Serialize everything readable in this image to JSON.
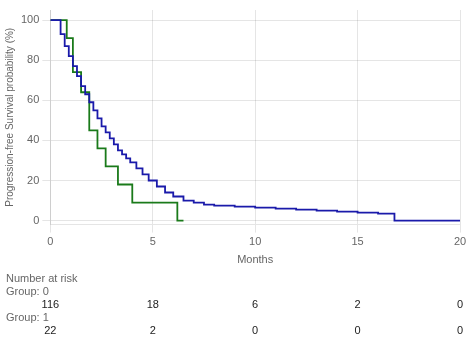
{
  "chart_data": {
    "type": "step",
    "xlabel": "Months",
    "ylabel": "Progression-free Survival probability (%)",
    "xlim": [
      0,
      20
    ],
    "ylim": [
      -2,
      105
    ],
    "xticks": [
      0,
      5,
      10,
      15,
      20
    ],
    "yticks": [
      0,
      20,
      40,
      60,
      80,
      100
    ],
    "grid": true,
    "series": [
      {
        "color": "#1a1aaa",
        "x": [
          0.0,
          0.3,
          0.5,
          0.7,
          0.9,
          1.1,
          1.3,
          1.5,
          1.7,
          1.9,
          2.1,
          2.3,
          2.5,
          2.7,
          2.9,
          3.1,
          3.3,
          3.5,
          3.7,
          3.9,
          4.2,
          4.5,
          4.8,
          5.2,
          5.6,
          6.0,
          6.5,
          7.0,
          7.5,
          8.0,
          9.0,
          10.0,
          11.0,
          12.0,
          13.0,
          14.0,
          15.0,
          16.0,
          16.8,
          20.0
        ],
        "values": [
          100,
          100,
          93,
          87,
          82,
          77,
          72,
          67,
          63,
          59,
          55,
          51,
          47,
          44,
          41,
          38,
          35,
          33,
          31,
          29,
          26,
          23,
          20,
          17,
          14,
          12,
          10,
          9,
          8,
          7.5,
          7,
          6.5,
          6,
          5.5,
          5,
          4.5,
          4,
          3.5,
          0,
          0
        ]
      },
      {
        "color": "#1a7a1a",
        "x": [
          0.0,
          0.5,
          0.8,
          1.1,
          1.5,
          1.9,
          2.3,
          2.7,
          3.0,
          3.3,
          3.7,
          4.0,
          4.5,
          5.0,
          5.5,
          6.2,
          6.5
        ],
        "values": [
          100,
          100,
          91,
          74,
          64,
          45,
          36,
          27,
          27,
          18,
          18,
          9,
          9,
          9,
          9,
          0,
          0
        ]
      }
    ],
    "risk_table": {
      "title": "Number at risk",
      "x": [
        0,
        5,
        10,
        15,
        20
      ],
      "rows": [
        {
          "name": "Group: 0",
          "values": [
            116,
            18,
            6,
            2,
            0
          ]
        },
        {
          "name": "Group: 1",
          "values": [
            22,
            2,
            0,
            0,
            0
          ]
        }
      ]
    }
  }
}
